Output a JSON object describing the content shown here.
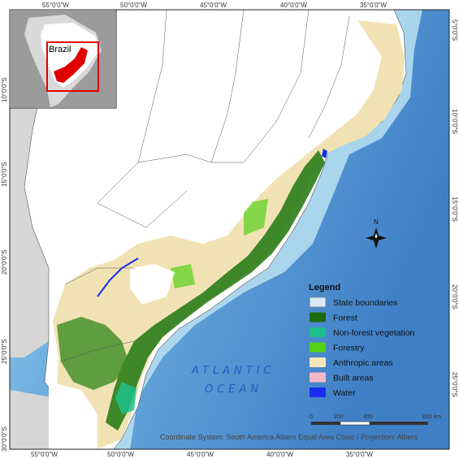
{
  "map": {
    "top_ticks": [
      "55°0'0\"W",
      "50°0'0\"W",
      "45°0'0\"W",
      "40°0'0\"W",
      "35°0'0\"W"
    ],
    "bottom_ticks": [
      "55°0'0\"W",
      "50°0'0\"W",
      "45°0'0\"W",
      "40°0'0\"W",
      "35°0'0\"W"
    ],
    "left_ticks": [
      "10°0'0\"S",
      "15°0'0\"S",
      "20°0'0\"S",
      "25°0'0\"S",
      "30°0'0\"S"
    ],
    "right_ticks": [
      "5°0'0\"S",
      "10°0'0\"S",
      "15°0'0\"S",
      "20°0'0\"S",
      "25°0'0\"S"
    ],
    "ocean_label_line1": "ATLANTIC",
    "ocean_label_line2": "OCEAN",
    "north_label": "N",
    "coordinate_note": "Coordinate System: South America Albers Equal Area Conic / Projection: Albers"
  },
  "inset": {
    "label": "Brazil"
  },
  "legend": {
    "title": "Legend",
    "items": [
      {
        "label": "State boundaries",
        "color": "#dce8f2"
      },
      {
        "label": "Forest",
        "color": "#1e6b12"
      },
      {
        "label": "Non-forest vegetation",
        "color": "#1fbf8c"
      },
      {
        "label": "Forestry",
        "color": "#55d21a"
      },
      {
        "label": "Anthropic areas",
        "color": "#f4e6bb"
      },
      {
        "label": "Built areas",
        "color": "#f6b8c4"
      },
      {
        "label": "Water",
        "color": "#1a2cf0"
      }
    ]
  },
  "scale_bar": {
    "labels": [
      "0",
      "200",
      "400",
      "800 km"
    ]
  },
  "colors": {
    "ocean_deep": "#4f8fcf",
    "ocean_shallow": "#b9e2f2",
    "land": "#ffffff",
    "outside": "#d6d6d6",
    "inset_box": "#e00000"
  }
}
